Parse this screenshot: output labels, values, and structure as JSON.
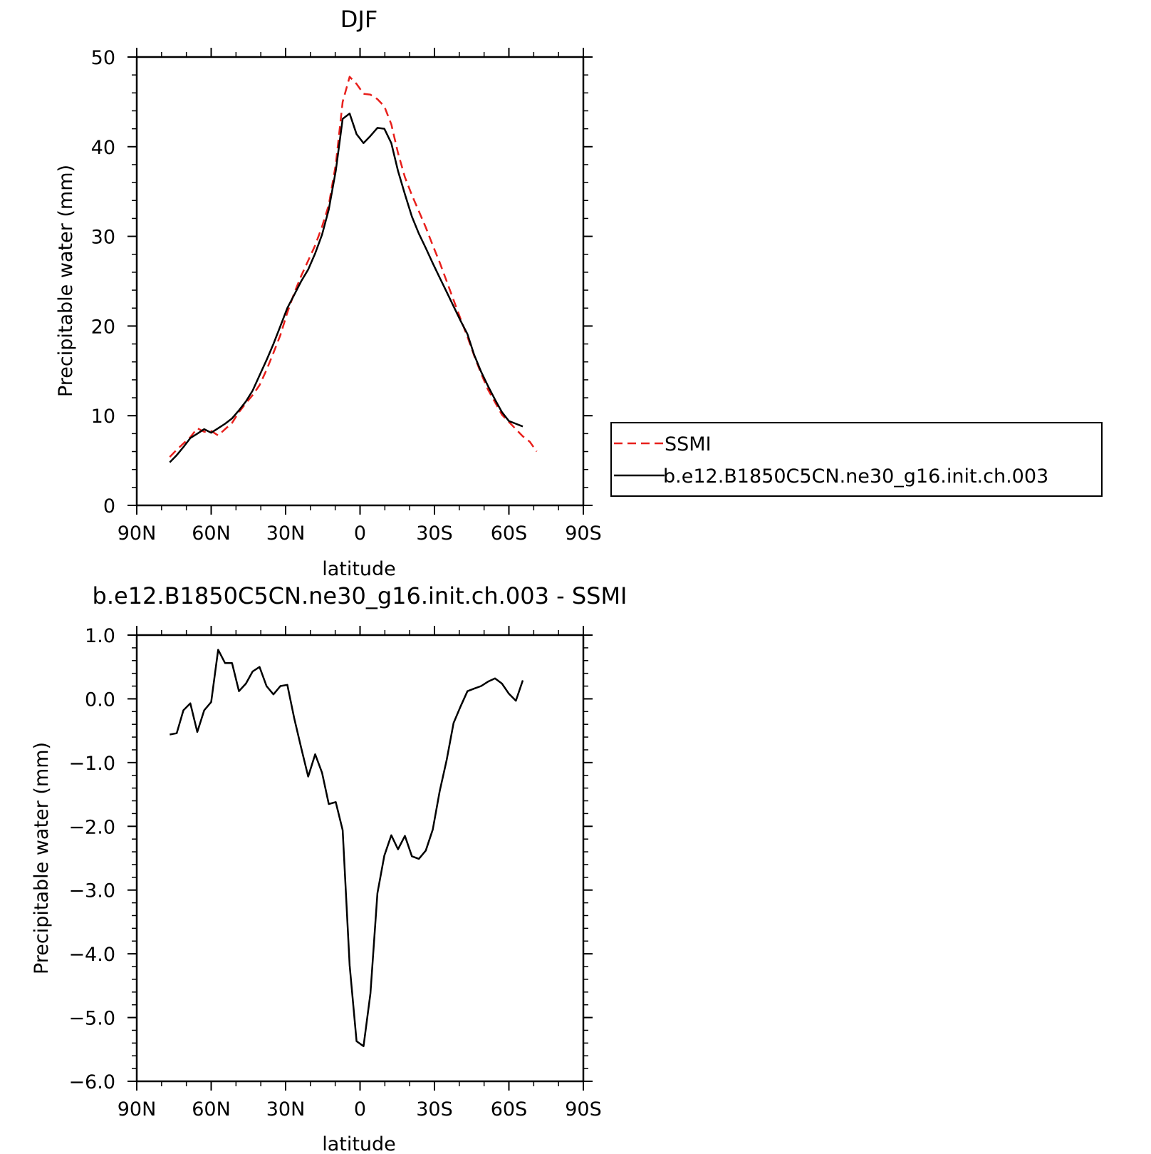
{
  "chart_data": [
    {
      "type": "line",
      "title": "DJF",
      "xlabel": "latitude",
      "ylabel": "Precipitable water (mm)",
      "xlim": [
        90,
        -90
      ],
      "ylim": [
        0,
        50
      ],
      "x_ticks": [
        {
          "value": 90,
          "label": "90N"
        },
        {
          "value": 60,
          "label": "60N"
        },
        {
          "value": 30,
          "label": "30N"
        },
        {
          "value": 0,
          "label": "0"
        },
        {
          "value": -30,
          "label": "30S"
        },
        {
          "value": -60,
          "label": "60S"
        },
        {
          "value": -90,
          "label": "90S"
        }
      ],
      "y_ticks": [
        {
          "value": 0,
          "label": "0"
        },
        {
          "value": 10,
          "label": "10"
        },
        {
          "value": 20,
          "label": "20"
        },
        {
          "value": 30,
          "label": "30"
        },
        {
          "value": 40,
          "label": "40"
        },
        {
          "value": 50,
          "label": "50"
        }
      ],
      "grid": false,
      "legend_position": "right",
      "series": [
        {
          "name": "SSMI",
          "color": "#e8201c",
          "dash": "dashed",
          "points": [
            [
              76.7,
              5.4
            ],
            [
              73.9,
              6.2
            ],
            [
              71.2,
              6.9
            ],
            [
              68.4,
              7.6
            ],
            [
              65.6,
              8.6
            ],
            [
              62.8,
              8.2
            ],
            [
              60.0,
              8.3
            ],
            [
              57.2,
              7.8
            ],
            [
              54.4,
              8.5
            ],
            [
              51.6,
              9.2
            ],
            [
              48.8,
              10.4
            ],
            [
              46.0,
              11.4
            ],
            [
              43.3,
              12.3
            ],
            [
              40.5,
              13.4
            ],
            [
              37.7,
              15.1
            ],
            [
              34.9,
              17.0
            ],
            [
              32.1,
              19.0
            ],
            [
              29.3,
              21.5
            ],
            [
              26.5,
              23.7
            ],
            [
              23.7,
              25.6
            ],
            [
              20.9,
              27.3
            ],
            [
              18.1,
              29.0
            ],
            [
              15.3,
              31.1
            ],
            [
              12.6,
              33.5
            ],
            [
              9.8,
              38.0
            ],
            [
              7.0,
              45.0
            ],
            [
              4.2,
              47.8
            ],
            [
              1.4,
              47.0
            ],
            [
              -1.4,
              45.9
            ],
            [
              -4.2,
              45.8
            ],
            [
              -7.0,
              45.3
            ],
            [
              -9.8,
              44.5
            ],
            [
              -12.6,
              42.5
            ],
            [
              -15.3,
              39.3
            ],
            [
              -18.1,
              36.6
            ],
            [
              -20.9,
              34.6
            ],
            [
              -23.7,
              32.8
            ],
            [
              -26.5,
              31.0
            ],
            [
              -29.3,
              29.0
            ],
            [
              -32.1,
              27.1
            ],
            [
              -34.9,
              25.0
            ],
            [
              -37.7,
              22.9
            ],
            [
              -40.5,
              20.8
            ],
            [
              -43.3,
              18.8
            ],
            [
              -46.0,
              16.7
            ],
            [
              -48.8,
              14.7
            ],
            [
              -51.6,
              12.9
            ],
            [
              -54.4,
              11.5
            ],
            [
              -57.2,
              10.1
            ],
            [
              -60.0,
              9.3
            ],
            [
              -62.8,
              8.5
            ],
            [
              -65.6,
              7.7
            ],
            [
              -68.4,
              7.1
            ],
            [
              -71.2,
              6.0
            ]
          ]
        },
        {
          "name": "b.e12.B1850C5CN.ne30_g16.init.ch.003",
          "color": "#000000",
          "dash": "solid",
          "points": [
            [
              76.7,
              4.8
            ],
            [
              73.9,
              5.6
            ],
            [
              71.2,
              6.5
            ],
            [
              68.4,
              7.5
            ],
            [
              65.6,
              8.0
            ],
            [
              62.8,
              8.5
            ],
            [
              60.0,
              8.1
            ],
            [
              57.2,
              8.6
            ],
            [
              54.4,
              9.1
            ],
            [
              51.6,
              9.7
            ],
            [
              48.8,
              10.6
            ],
            [
              46.0,
              11.6
            ],
            [
              43.3,
              12.8
            ],
            [
              40.5,
              14.5
            ],
            [
              37.7,
              16.2
            ],
            [
              34.9,
              18.0
            ],
            [
              32.1,
              20.0
            ],
            [
              29.3,
              22.0
            ],
            [
              26.5,
              23.5
            ],
            [
              23.7,
              25.0
            ],
            [
              20.9,
              26.3
            ],
            [
              18.1,
              28.1
            ],
            [
              15.3,
              30.2
            ],
            [
              12.6,
              33.0
            ],
            [
              9.8,
              37.3
            ],
            [
              7.0,
              43.1
            ],
            [
              4.2,
              43.7
            ],
            [
              1.4,
              41.4
            ],
            [
              -1.4,
              40.4
            ],
            [
              -4.2,
              41.2
            ],
            [
              -7.0,
              42.1
            ],
            [
              -9.8,
              42.0
            ],
            [
              -12.6,
              40.4
            ],
            [
              -15.3,
              37.3
            ],
            [
              -18.1,
              34.7
            ],
            [
              -20.9,
              32.2
            ],
            [
              -23.7,
              30.3
            ],
            [
              -26.5,
              28.7
            ],
            [
              -29.3,
              27.0
            ],
            [
              -32.1,
              25.4
            ],
            [
              -34.9,
              23.8
            ],
            [
              -37.7,
              22.2
            ],
            [
              -40.5,
              20.6
            ],
            [
              -43.3,
              19.1
            ],
            [
              -46.0,
              16.8
            ],
            [
              -48.8,
              14.9
            ],
            [
              -51.6,
              13.3
            ],
            [
              -54.4,
              11.8
            ],
            [
              -57.2,
              10.4
            ],
            [
              -60.0,
              9.4
            ],
            [
              -62.8,
              9.1
            ],
            [
              -65.6,
              8.8
            ]
          ]
        }
      ]
    },
    {
      "type": "line",
      "title": "b.e12.B1850C5CN.ne30_g16.init.ch.003 - SSMI",
      "xlabel": "latitude",
      "ylabel": "Precipitable water (mm)",
      "xlim": [
        90,
        -90
      ],
      "ylim": [
        -6.0,
        1.0
      ],
      "x_ticks": [
        {
          "value": 90,
          "label": "90N"
        },
        {
          "value": 60,
          "label": "60N"
        },
        {
          "value": 30,
          "label": "30N"
        },
        {
          "value": 0,
          "label": "0"
        },
        {
          "value": -30,
          "label": "30S"
        },
        {
          "value": -60,
          "label": "60S"
        },
        {
          "value": -90,
          "label": "90S"
        }
      ],
      "y_ticks": [
        {
          "value": 1.0,
          "label": "1.0"
        },
        {
          "value": 0.0,
          "label": "0.0"
        },
        {
          "value": -1.0,
          "label": "-1.0"
        },
        {
          "value": -2.0,
          "label": "-2.0"
        },
        {
          "value": -3.0,
          "label": "-3.0"
        },
        {
          "value": -4.0,
          "label": "-4.0"
        },
        {
          "value": -5.0,
          "label": "-5.0"
        },
        {
          "value": -6.0,
          "label": "-6.0"
        }
      ],
      "grid": false,
      "series": [
        {
          "color": "#000000",
          "dash": "solid",
          "points": [
            [
              76.7,
              -0.56
            ],
            [
              73.9,
              -0.54
            ],
            [
              71.2,
              -0.18
            ],
            [
              68.4,
              -0.07
            ],
            [
              65.6,
              -0.52
            ],
            [
              62.8,
              -0.18
            ],
            [
              60.0,
              -0.05
            ],
            [
              57.2,
              0.77
            ],
            [
              54.4,
              0.56
            ],
            [
              51.6,
              0.56
            ],
            [
              48.8,
              0.12
            ],
            [
              46.0,
              0.24
            ],
            [
              43.3,
              0.43
            ],
            [
              40.5,
              0.5
            ],
            [
              37.7,
              0.2
            ],
            [
              34.9,
              0.07
            ],
            [
              32.1,
              0.2
            ],
            [
              29.3,
              0.22
            ],
            [
              26.5,
              -0.31
            ],
            [
              23.7,
              -0.77
            ],
            [
              20.9,
              -1.22
            ],
            [
              18.1,
              -0.87
            ],
            [
              15.3,
              -1.16
            ],
            [
              12.6,
              -1.65
            ],
            [
              9.8,
              -1.62
            ],
            [
              7.0,
              -2.06
            ],
            [
              4.2,
              -4.18
            ],
            [
              1.4,
              -5.37
            ],
            [
              -1.4,
              -5.45
            ],
            [
              -4.2,
              -4.62
            ],
            [
              -7.0,
              -3.05
            ],
            [
              -9.8,
              -2.46
            ],
            [
              -12.6,
              -2.14
            ],
            [
              -15.3,
              -2.36
            ],
            [
              -18.1,
              -2.15
            ],
            [
              -20.9,
              -2.47
            ],
            [
              -23.7,
              -2.51
            ],
            [
              -26.5,
              -2.38
            ],
            [
              -29.3,
              -2.05
            ],
            [
              -32.1,
              -1.45
            ],
            [
              -34.9,
              -0.96
            ],
            [
              -37.7,
              -0.38
            ],
            [
              -40.5,
              -0.12
            ],
            [
              -43.3,
              0.12
            ],
            [
              -46.0,
              0.16
            ],
            [
              -48.8,
              0.2
            ],
            [
              -51.6,
              0.27
            ],
            [
              -54.4,
              0.32
            ],
            [
              -57.2,
              0.24
            ],
            [
              -60.0,
              0.08
            ],
            [
              -62.8,
              -0.03
            ],
            [
              -65.6,
              0.29
            ]
          ]
        }
      ]
    }
  ]
}
